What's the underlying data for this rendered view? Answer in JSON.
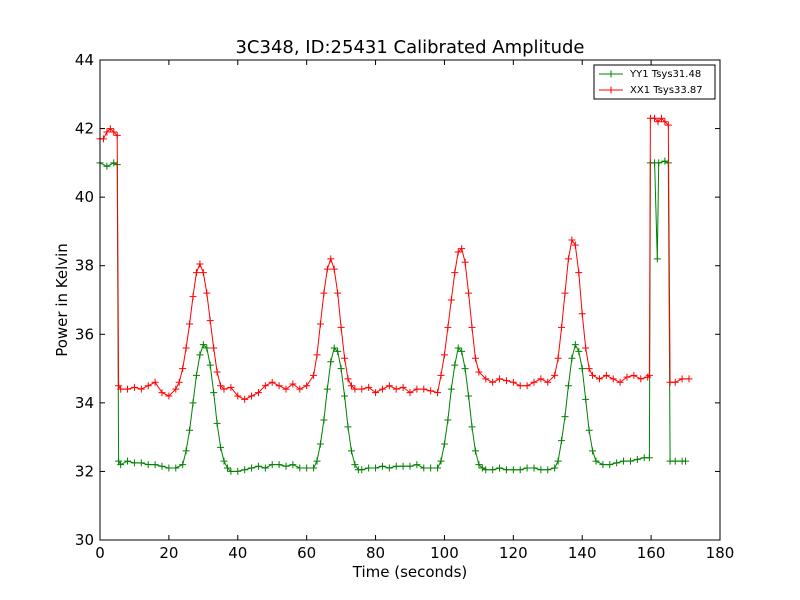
{
  "chart_data": {
    "type": "line",
    "title": "3C348, ID:25431 Calibrated Amplitude",
    "xlabel": "Time (seconds)",
    "ylabel": "Power in Kelvin",
    "xlim": [
      0,
      180
    ],
    "ylim": [
      30,
      44
    ],
    "xticks": [
      0,
      20,
      40,
      60,
      80,
      100,
      120,
      140,
      160,
      180
    ],
    "yticks": [
      30,
      32,
      34,
      36,
      38,
      40,
      42,
      44
    ],
    "grid": false,
    "legend_position": "top-right",
    "marker": "+",
    "series": [
      {
        "name": "YY1 Tsys31.48",
        "color": "#008000",
        "points": [
          [
            0,
            41.0
          ],
          [
            2,
            40.9
          ],
          [
            4,
            41.0
          ],
          [
            5,
            40.95
          ],
          [
            5.4,
            32.3
          ],
          [
            6,
            32.2
          ],
          [
            8,
            32.3
          ],
          [
            10,
            32.25
          ],
          [
            12,
            32.25
          ],
          [
            14,
            32.2
          ],
          [
            16,
            32.2
          ],
          [
            18,
            32.15
          ],
          [
            20,
            32.1
          ],
          [
            22,
            32.1
          ],
          [
            24,
            32.2
          ],
          [
            25,
            32.6
          ],
          [
            26,
            33.2
          ],
          [
            27,
            34.0
          ],
          [
            28,
            34.8
          ],
          [
            29,
            35.4
          ],
          [
            30,
            35.7
          ],
          [
            31,
            35.6
          ],
          [
            32,
            35.1
          ],
          [
            33,
            34.3
          ],
          [
            34,
            33.4
          ],
          [
            35,
            32.7
          ],
          [
            36,
            32.3
          ],
          [
            37,
            32.1
          ],
          [
            38,
            32.0
          ],
          [
            40,
            32.0
          ],
          [
            42,
            32.05
          ],
          [
            44,
            32.1
          ],
          [
            46,
            32.15
          ],
          [
            48,
            32.1
          ],
          [
            50,
            32.2
          ],
          [
            52,
            32.2
          ],
          [
            54,
            32.15
          ],
          [
            56,
            32.2
          ],
          [
            58,
            32.1
          ],
          [
            60,
            32.1
          ],
          [
            62,
            32.1
          ],
          [
            63,
            32.3
          ],
          [
            64,
            32.8
          ],
          [
            65,
            33.5
          ],
          [
            66,
            34.4
          ],
          [
            67,
            35.2
          ],
          [
            68,
            35.6
          ],
          [
            69,
            35.5
          ],
          [
            70,
            35.0
          ],
          [
            71,
            34.2
          ],
          [
            72,
            33.3
          ],
          [
            73,
            32.6
          ],
          [
            74,
            32.2
          ],
          [
            75,
            32.05
          ],
          [
            76,
            32.05
          ],
          [
            78,
            32.1
          ],
          [
            80,
            32.1
          ],
          [
            82,
            32.15
          ],
          [
            84,
            32.1
          ],
          [
            86,
            32.15
          ],
          [
            88,
            32.15
          ],
          [
            90,
            32.15
          ],
          [
            92,
            32.2
          ],
          [
            94,
            32.1
          ],
          [
            96,
            32.1
          ],
          [
            98,
            32.1
          ],
          [
            99,
            32.3
          ],
          [
            100,
            32.8
          ],
          [
            101,
            33.5
          ],
          [
            102,
            34.4
          ],
          [
            103,
            35.1
          ],
          [
            104,
            35.6
          ],
          [
            105,
            35.5
          ],
          [
            106,
            35.0
          ],
          [
            107,
            34.2
          ],
          [
            108,
            33.3
          ],
          [
            109,
            32.6
          ],
          [
            110,
            32.2
          ],
          [
            111,
            32.1
          ],
          [
            112,
            32.05
          ],
          [
            114,
            32.05
          ],
          [
            116,
            32.1
          ],
          [
            118,
            32.05
          ],
          [
            120,
            32.05
          ],
          [
            122,
            32.05
          ],
          [
            124,
            32.1
          ],
          [
            126,
            32.1
          ],
          [
            128,
            32.05
          ],
          [
            130,
            32.05
          ],
          [
            132,
            32.1
          ],
          [
            133,
            32.3
          ],
          [
            134,
            32.9
          ],
          [
            135,
            33.6
          ],
          [
            136,
            34.5
          ],
          [
            137,
            35.3
          ],
          [
            138,
            35.7
          ],
          [
            139,
            35.5
          ],
          [
            140,
            35.0
          ],
          [
            141,
            34.1
          ],
          [
            142,
            33.2
          ],
          [
            143,
            32.6
          ],
          [
            144,
            32.3
          ],
          [
            146,
            32.2
          ],
          [
            148,
            32.2
          ],
          [
            150,
            32.25
          ],
          [
            152,
            32.3
          ],
          [
            154,
            32.3
          ],
          [
            156,
            32.35
          ],
          [
            158,
            32.4
          ],
          [
            159.5,
            32.4
          ],
          [
            159.8,
            41.0
          ],
          [
            161,
            41.0
          ],
          [
            161.8,
            38.2
          ],
          [
            162.2,
            41.0
          ],
          [
            164,
            41.05
          ],
          [
            165,
            41.0
          ],
          [
            165.5,
            32.3
          ],
          [
            167,
            32.3
          ],
          [
            169,
            32.3
          ],
          [
            170,
            32.3
          ]
        ]
      },
      {
        "name": "XX1 Tsys33.87",
        "color": "#ff0000",
        "points": [
          [
            0,
            41.7
          ],
          [
            1,
            41.7
          ],
          [
            2,
            41.9
          ],
          [
            3,
            42.0
          ],
          [
            4,
            41.9
          ],
          [
            5,
            41.8
          ],
          [
            5.4,
            34.5
          ],
          [
            6,
            34.4
          ],
          [
            8,
            34.4
          ],
          [
            10,
            34.45
          ],
          [
            12,
            34.4
          ],
          [
            14,
            34.5
          ],
          [
            16,
            34.6
          ],
          [
            18,
            34.3
          ],
          [
            20,
            34.2
          ],
          [
            22,
            34.4
          ],
          [
            23,
            34.6
          ],
          [
            24,
            35.0
          ],
          [
            25,
            35.6
          ],
          [
            26,
            36.3
          ],
          [
            27,
            37.1
          ],
          [
            28,
            37.8
          ],
          [
            29,
            38.05
          ],
          [
            30,
            37.8
          ],
          [
            31,
            37.2
          ],
          [
            32,
            36.4
          ],
          [
            33,
            35.6
          ],
          [
            34,
            34.9
          ],
          [
            35,
            34.5
          ],
          [
            36,
            34.4
          ],
          [
            38,
            34.45
          ],
          [
            40,
            34.2
          ],
          [
            42,
            34.1
          ],
          [
            44,
            34.2
          ],
          [
            46,
            34.3
          ],
          [
            48,
            34.5
          ],
          [
            50,
            34.6
          ],
          [
            52,
            34.5
          ],
          [
            54,
            34.4
          ],
          [
            56,
            34.55
          ],
          [
            58,
            34.4
          ],
          [
            60,
            34.5
          ],
          [
            62,
            34.8
          ],
          [
            63,
            35.4
          ],
          [
            64,
            36.3
          ],
          [
            65,
            37.2
          ],
          [
            66,
            37.9
          ],
          [
            67,
            38.2
          ],
          [
            68,
            37.9
          ],
          [
            69,
            37.2
          ],
          [
            70,
            36.2
          ],
          [
            71,
            35.3
          ],
          [
            72,
            34.7
          ],
          [
            73,
            34.5
          ],
          [
            74,
            34.4
          ],
          [
            76,
            34.4
          ],
          [
            78,
            34.45
          ],
          [
            80,
            34.3
          ],
          [
            82,
            34.4
          ],
          [
            84,
            34.5
          ],
          [
            86,
            34.4
          ],
          [
            88,
            34.45
          ],
          [
            90,
            34.3
          ],
          [
            92,
            34.4
          ],
          [
            94,
            34.4
          ],
          [
            96,
            34.35
          ],
          [
            98,
            34.3
          ],
          [
            99,
            34.8
          ],
          [
            100,
            35.4
          ],
          [
            101,
            36.2
          ],
          [
            102,
            37.0
          ],
          [
            103,
            37.8
          ],
          [
            104,
            38.4
          ],
          [
            105,
            38.5
          ],
          [
            106,
            38.1
          ],
          [
            107,
            37.2
          ],
          [
            108,
            36.2
          ],
          [
            109,
            35.3
          ],
          [
            110,
            34.9
          ],
          [
            112,
            34.7
          ],
          [
            114,
            34.6
          ],
          [
            116,
            34.7
          ],
          [
            118,
            34.65
          ],
          [
            120,
            34.6
          ],
          [
            122,
            34.5
          ],
          [
            124,
            34.5
          ],
          [
            126,
            34.6
          ],
          [
            128,
            34.7
          ],
          [
            130,
            34.6
          ],
          [
            132,
            34.8
          ],
          [
            133,
            35.3
          ],
          [
            134,
            36.2
          ],
          [
            135,
            37.2
          ],
          [
            136,
            38.2
          ],
          [
            137,
            38.75
          ],
          [
            138,
            38.6
          ],
          [
            139,
            37.8
          ],
          [
            140,
            36.6
          ],
          [
            141,
            35.6
          ],
          [
            142,
            35.0
          ],
          [
            143,
            34.8
          ],
          [
            145,
            34.7
          ],
          [
            147,
            34.8
          ],
          [
            149,
            34.7
          ],
          [
            151,
            34.6
          ],
          [
            153,
            34.75
          ],
          [
            155,
            34.8
          ],
          [
            157,
            34.7
          ],
          [
            159,
            34.75
          ],
          [
            159.5,
            34.8
          ],
          [
            159.8,
            42.3
          ],
          [
            161,
            42.3
          ],
          [
            162,
            42.2
          ],
          [
            163,
            42.3
          ],
          [
            164,
            42.2
          ],
          [
            165,
            42.1
          ],
          [
            165.5,
            34.6
          ],
          [
            167,
            34.6
          ],
          [
            169,
            34.7
          ],
          [
            171,
            34.7
          ]
        ]
      }
    ]
  }
}
